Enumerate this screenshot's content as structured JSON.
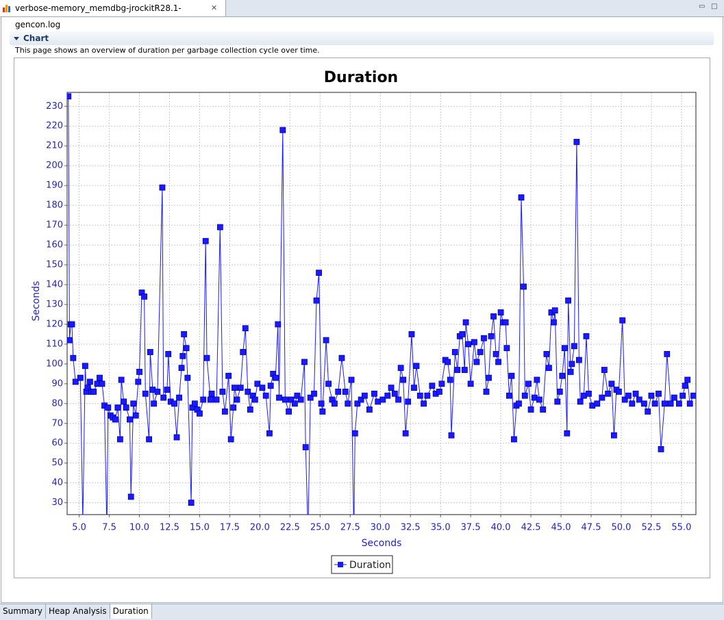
{
  "editor_tab": {
    "title": "verbose-memory_memdbg-jrockitR28.1-gencon.log"
  },
  "section": {
    "title": "Chart",
    "description": "This page shows an overview of duration per garbage collection cycle over time."
  },
  "chart_data": {
    "type": "line",
    "title": "Duration",
    "x_label": "Seconds",
    "y_label": "Seconds",
    "x": [
      4.1,
      4.2,
      4.3,
      4.4,
      4.5,
      4.7,
      5.1,
      5.3,
      5.5,
      5.6,
      5.7,
      5.9,
      6.0,
      6.2,
      6.5,
      6.7,
      6.9,
      7.1,
      7.3,
      7.4,
      7.6,
      7.8,
      8.0,
      8.2,
      8.4,
      8.5,
      8.7,
      8.9,
      9.2,
      9.3,
      9.5,
      9.7,
      9.9,
      10.0,
      10.2,
      10.4,
      10.5,
      10.8,
      10.9,
      11.1,
      11.2,
      11.5,
      11.9,
      12.0,
      12.3,
      12.4,
      12.6,
      12.9,
      13.1,
      13.3,
      13.5,
      13.6,
      13.7,
      13.9,
      14.0,
      14.3,
      14.4,
      14.6,
      14.8,
      15.0,
      15.3,
      15.5,
      15.6,
      15.9,
      16.0,
      16.4,
      16.7,
      16.9,
      17.1,
      17.4,
      17.6,
      17.8,
      17.9,
      18.1,
      18.4,
      18.6,
      18.8,
      19.0,
      19.2,
      19.4,
      19.6,
      19.8,
      20.2,
      20.5,
      20.8,
      20.9,
      21.1,
      21.3,
      21.5,
      21.6,
      21.9,
      22.1,
      22.4,
      22.6,
      22.9,
      23.1,
      23.4,
      23.7,
      23.8,
      24.0,
      24.2,
      24.5,
      24.7,
      24.9,
      25.1,
      25.2,
      25.5,
      25.7,
      26.0,
      26.2,
      26.5,
      26.8,
      27.1,
      27.3,
      27.6,
      27.8,
      27.9,
      28.1,
      28.4,
      28.7,
      29.1,
      29.5,
      29.8,
      30.2,
      30.6,
      30.9,
      31.2,
      31.5,
      31.7,
      31.9,
      32.1,
      32.3,
      32.6,
      32.8,
      33.0,
      33.3,
      33.6,
      33.9,
      34.3,
      34.6,
      34.9,
      35.1,
      35.4,
      35.6,
      35.8,
      35.9,
      36.2,
      36.4,
      36.6,
      36.8,
      37.0,
      37.1,
      37.3,
      37.5,
      37.8,
      38.0,
      38.3,
      38.6,
      38.8,
      39.0,
      39.2,
      39.4,
      39.6,
      39.8,
      40.0,
      40.2,
      40.4,
      40.5,
      40.7,
      40.9,
      41.1,
      41.3,
      41.5,
      41.7,
      41.9,
      42.0,
      42.3,
      42.5,
      42.8,
      43.0,
      43.2,
      43.5,
      43.8,
      44.0,
      44.2,
      44.4,
      44.5,
      44.7,
      44.9,
      45.1,
      45.3,
      45.5,
      45.6,
      45.8,
      45.9,
      46.1,
      46.3,
      46.5,
      46.6,
      46.9,
      47.1,
      47.3,
      47.6,
      48.0,
      48.4,
      48.6,
      48.9,
      49.2,
      49.4,
      49.6,
      49.8,
      50.1,
      50.3,
      50.6,
      50.9,
      51.2,
      51.5,
      51.9,
      52.2,
      52.5,
      52.8,
      53.1,
      53.3,
      53.6,
      53.8,
      54.1,
      54.4,
      54.8,
      55.1,
      55.3,
      55.5,
      55.7,
      56.0
    ],
    "series": [
      {
        "name": "Duration",
        "color": "#1a1aff",
        "values": [
          235,
          112,
          120,
          120,
          103,
          91,
          93,
          20,
          99,
          86,
          88,
          91,
          86,
          86,
          90,
          93,
          90,
          79,
          15,
          78,
          74,
          73,
          72,
          78,
          62,
          92,
          81,
          78,
          72,
          33,
          80,
          74,
          91,
          96,
          136,
          134,
          85,
          62,
          106,
          87,
          80,
          86,
          189,
          83,
          87,
          105,
          81,
          80,
          63,
          83,
          98,
          104,
          115,
          108,
          93,
          30,
          78,
          80,
          77,
          75,
          82,
          162,
          103,
          82,
          85,
          82,
          169,
          86,
          76,
          94,
          62,
          78,
          88,
          82,
          88,
          106,
          118,
          86,
          77,
          84,
          82,
          90,
          88,
          84,
          65,
          89,
          95,
          93,
          120,
          83,
          218,
          82,
          76,
          82,
          80,
          84,
          82,
          101,
          58,
          15,
          83,
          85,
          132,
          146,
          80,
          76,
          112,
          90,
          82,
          80,
          86,
          103,
          86,
          80,
          92,
          15,
          65,
          80,
          82,
          84,
          77,
          85,
          81,
          82,
          84,
          88,
          85,
          82,
          98,
          92,
          65,
          81,
          115,
          88,
          99,
          84,
          80,
          84,
          89,
          85,
          86,
          90,
          102,
          101,
          92,
          64,
          106,
          97,
          114,
          115,
          97,
          121,
          110,
          90,
          111,
          101,
          106,
          113,
          86,
          93,
          114,
          124,
          105,
          101,
          126,
          121,
          121,
          108,
          84,
          94,
          62,
          79,
          80,
          184,
          139,
          84,
          90,
          77,
          83,
          92,
          82,
          77,
          105,
          98,
          126,
          121,
          127,
          81,
          86,
          94,
          108,
          65,
          132,
          96,
          100,
          109,
          212,
          102,
          81,
          84,
          114,
          85,
          79,
          80,
          83,
          97,
          85,
          90,
          64,
          87,
          86,
          122,
          82,
          84,
          80,
          85,
          82,
          80,
          76,
          84,
          80,
          85,
          57,
          80,
          105,
          80,
          83,
          80,
          84,
          89,
          92,
          80,
          84
        ]
      }
    ],
    "xlim": [
      4.0,
      56.2
    ],
    "ylim": [
      24,
      237
    ],
    "xticks": [
      {
        "value": 5,
        "label": "5.0"
      },
      7.5,
      {
        "value": 10,
        "label": "10.0"
      },
      12.5,
      {
        "value": 15,
        "label": "15.0"
      },
      17.5,
      {
        "value": 20,
        "label": "20.0"
      },
      22.5,
      {
        "value": 25,
        "label": "25.0"
      },
      27.5,
      {
        "value": 30,
        "label": "30.0"
      },
      32.5,
      {
        "value": 35,
        "label": "35.0"
      },
      37.5,
      {
        "value": 40,
        "label": "40.0"
      },
      42.5,
      {
        "value": 45,
        "label": "45.0"
      },
      47.5,
      {
        "value": 50,
        "label": "50.0"
      },
      52.5,
      {
        "value": 55,
        "label": "55.0"
      }
    ],
    "yticks": [
      30,
      40,
      50,
      60,
      70,
      80,
      90,
      100,
      110,
      120,
      130,
      140,
      150,
      160,
      170,
      180,
      190,
      200,
      210,
      220,
      230
    ],
    "grid": true,
    "legend": "bottom"
  },
  "bottom_tabs": [
    "Summary",
    "Heap Analysis",
    "Duration"
  ],
  "active_tab": 2
}
